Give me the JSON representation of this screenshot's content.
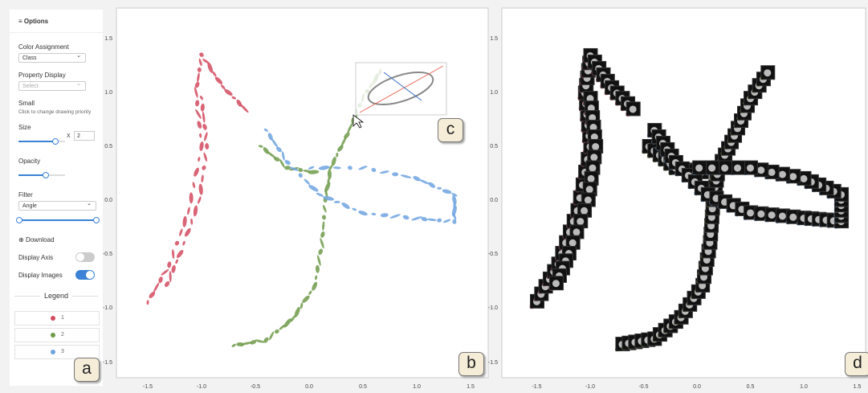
{
  "options": {
    "title": "Options",
    "color_assignment": {
      "label": "Color Assignment",
      "value": "Class"
    },
    "property_display": {
      "label": "Property Display",
      "placeholder": "Select"
    },
    "small": {
      "label": "Small",
      "hint": "Click to change drawing priority"
    },
    "size": {
      "label": "Size",
      "multiplier": "X",
      "value": "2"
    },
    "opacity": {
      "label": "Opacity"
    },
    "filter": {
      "label": "Filter",
      "value": "Angle"
    },
    "download": "Download",
    "display_axis": "Display Axis",
    "display_images": "Display Images"
  },
  "legend": {
    "title": "Legend",
    "items": [
      "1",
      "2",
      "3"
    ]
  },
  "plots": [
    {
      "x_ticks": [
        "-1.5",
        "-1.0",
        "-0.5",
        "0.0",
        "0.5",
        "1.0",
        "1.5"
      ],
      "y_ticks": [
        "1.5",
        "1.0",
        "0.5",
        "0.0",
        "-0.5",
        "-1.0",
        "-1.5"
      ]
    },
    {
      "x_ticks": [
        "-1.5",
        "-1.0",
        "-0.5",
        "0.0",
        "0.5",
        "1.0",
        "1.5"
      ],
      "y_ticks": [
        "1.5",
        "1.0",
        "0.5",
        "0.0",
        "-0.5",
        "-1.0",
        "-1.5"
      ]
    }
  ],
  "panel_labels": [
    "a",
    "b",
    "c",
    "d"
  ]
}
